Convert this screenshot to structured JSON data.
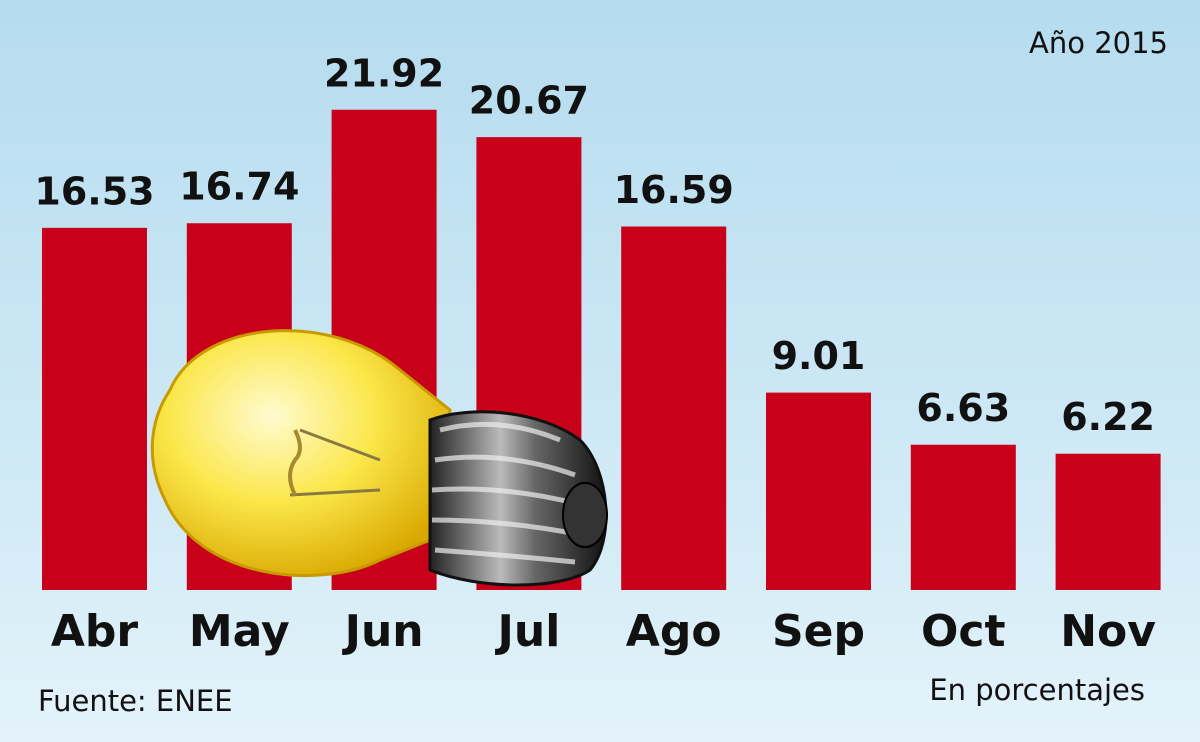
{
  "chart_data": {
    "type": "bar",
    "title": "Año 2015",
    "source": "Fuente: ENEE",
    "unit_note": "En porcentajes",
    "categories": [
      "Abr",
      "May",
      "Jun",
      "Jul",
      "Ago",
      "Sep",
      "Oct",
      "Nov"
    ],
    "values": [
      16.53,
      16.74,
      21.92,
      20.67,
      16.59,
      9.01,
      6.63,
      6.22
    ],
    "color": "#c8001a",
    "ylim": [
      0,
      22
    ]
  }
}
